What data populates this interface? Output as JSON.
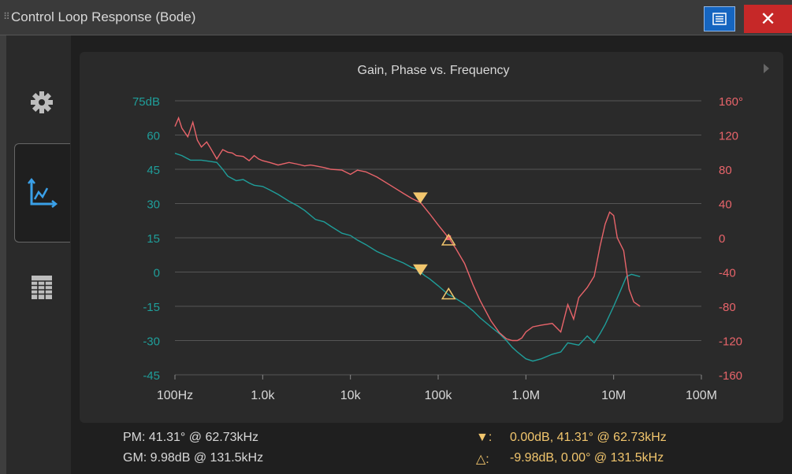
{
  "window": {
    "title": "Control Loop Response (Bode)"
  },
  "tabs": [
    {
      "name": "settings",
      "icon": "gear-icon"
    },
    {
      "name": "chart",
      "icon": "line-chart-icon",
      "active": true
    },
    {
      "name": "table",
      "icon": "table-icon"
    }
  ],
  "colors": {
    "gain": "#1f9e9a",
    "phase": "#e8646a",
    "marker": "#f2c66d",
    "bg": "#2a2a2a"
  },
  "chart_data": {
    "type": "line",
    "title": "Gain, Phase vs. Frequency",
    "x_scale": "log",
    "xlim": [
      100,
      100000000
    ],
    "x_ticks": [
      100,
      1000,
      10000,
      100000,
      1000000,
      10000000,
      100000000
    ],
    "x_tick_labels": [
      "100Hz",
      "1.0k",
      "10k",
      "100k",
      "1.0M",
      "10M",
      "100M"
    ],
    "y_left": {
      "lim": [
        -45,
        75
      ],
      "ticks": [
        75,
        60,
        45,
        30,
        15,
        0,
        -15,
        -30,
        -45
      ],
      "tick_labels": [
        "75dB",
        "60",
        "45",
        "30",
        "15",
        "0",
        "-15",
        "-30",
        "-45"
      ]
    },
    "y_right": {
      "lim": [
        -160,
        160
      ],
      "ticks": [
        160,
        120,
        80,
        40,
        0,
        -40,
        -80,
        -120,
        -160
      ],
      "tick_labels": [
        "160°",
        "120",
        "80",
        "40",
        "0",
        "-40",
        "-80",
        "-120",
        "-160"
      ]
    },
    "grid": true,
    "series": [
      {
        "axis": "left",
        "x": [
          100,
          120,
          150,
          200,
          250,
          300,
          350,
          400,
          500,
          600,
          700,
          800,
          1000,
          1200,
          1500,
          2000,
          2500,
          3000,
          4000,
          5000,
          6000,
          8000,
          10000,
          12000,
          15000,
          20000,
          30000,
          40000,
          50000,
          60000,
          62730,
          70000,
          80000,
          100000,
          131500,
          150000,
          200000,
          250000,
          300000,
          400000,
          500000,
          600000,
          700000,
          800000,
          1000000,
          1200000,
          1500000,
          2000000,
          2500000,
          3000000,
          4000000,
          5000000,
          6000000,
          7000000,
          8000000,
          10000000,
          12000000,
          14000000,
          16000000,
          18000000,
          20000000
        ],
        "values": [
          52,
          51,
          49,
          49,
          48.5,
          48,
          45,
          42,
          40,
          40.5,
          39,
          38,
          37.5,
          36,
          34,
          31,
          29,
          27,
          23,
          22,
          20,
          17,
          16,
          14,
          12,
          9,
          6,
          4,
          2,
          1,
          0,
          -1.5,
          -3,
          -6,
          -9.98,
          -11,
          -14,
          -17,
          -20,
          -24,
          -27,
          -30,
          -33,
          -35,
          -38,
          -39,
          -38,
          -36,
          -35,
          -31,
          -32,
          -28,
          -31,
          -27,
          -23,
          -15,
          -8,
          -2,
          -1,
          -1.5,
          -2
        ]
      },
      {
        "axis": "right",
        "x": [
          100,
          110,
          120,
          140,
          160,
          180,
          200,
          230,
          250,
          300,
          350,
          400,
          450,
          500,
          600,
          700,
          800,
          900,
          1000,
          1200,
          1500,
          2000,
          2500,
          3000,
          3500,
          4000,
          5000,
          6000,
          8000,
          10000,
          12000,
          15000,
          20000,
          30000,
          40000,
          50000,
          60000,
          62730,
          80000,
          100000,
          131500,
          160000,
          200000,
          250000,
          300000,
          400000,
          500000,
          600000,
          700000,
          800000,
          900000,
          1000000,
          1200000,
          1500000,
          2000000,
          2500000,
          3000000,
          3500000,
          4000000,
          5000000,
          6000000,
          7000000,
          8000000,
          9000000,
          10000000,
          11000000,
          13000000,
          15000000,
          17000000,
          20000000
        ],
        "values": [
          130,
          140,
          128,
          118,
          135,
          114,
          106,
          112,
          106,
          92,
          103,
          100,
          99,
          96,
          95,
          90,
          96,
          92,
          90,
          88,
          85,
          88,
          86,
          84,
          85,
          84,
          82,
          80,
          79,
          74,
          79,
          77,
          71,
          60,
          52,
          46,
          42,
          41.31,
          28,
          15,
          0,
          -13,
          -30,
          -55,
          -73,
          -97,
          -111,
          -118,
          -120,
          -120,
          -117,
          -110,
          -104,
          -102,
          -100,
          -110,
          -78,
          -95,
          -70,
          -58,
          -45,
          -10,
          16,
          30,
          26,
          0,
          -15,
          -60,
          -75,
          -80
        ]
      }
    ],
    "markers": [
      {
        "shape": "filled-triangle-down",
        "freq": 62730,
        "gain_db": 0.0,
        "phase_deg": 41.31
      },
      {
        "shape": "open-triangle-up",
        "freq": 131500,
        "gain_db": -9.98,
        "phase_deg": 0.0
      }
    ]
  },
  "readouts": {
    "pm": "PM:  41.31° @ 62.73kHz",
    "gm": "GM:  9.98dB @ 131.5kHz",
    "marker1_symbol": "▼:",
    "marker1": "0.00dB, 41.31° @ 62.73kHz",
    "marker2_symbol": "△:",
    "marker2": "-9.98dB, 0.00° @ 131.5kHz"
  }
}
